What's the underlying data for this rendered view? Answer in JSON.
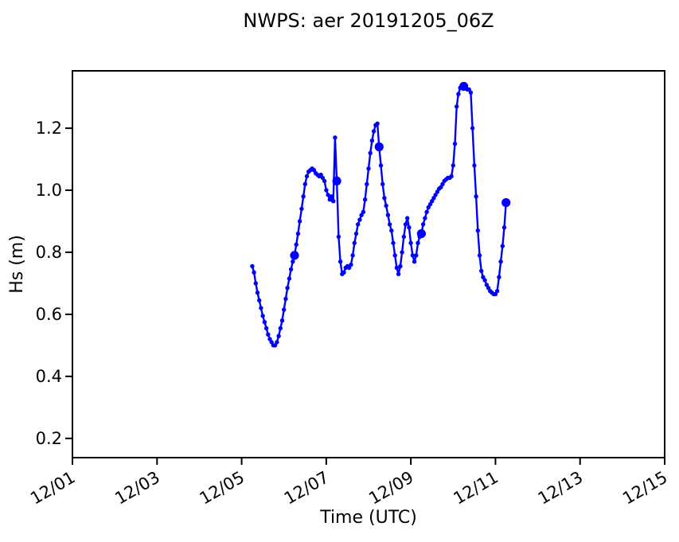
{
  "figure": {
    "title": "NWPS: aer 20191205_06Z",
    "xlabel": "Time (UTC)",
    "ylabel": "Hs (m)"
  },
  "chart_data": {
    "type": "line",
    "title": "NWPS: aer 20191205_06Z",
    "xlabel": "Time (UTC)",
    "ylabel": "Hs (m)",
    "grid": false,
    "legend": "none",
    "line_color": "#0000ff",
    "background_color": "#ffffff",
    "x_axis": {
      "tick_labels": [
        "12/01",
        "12/03",
        "12/05",
        "12/07",
        "12/09",
        "12/11",
        "12/13",
        "12/15"
      ],
      "tick_days": [
        0,
        2,
        4,
        6,
        8,
        10,
        12,
        14
      ],
      "range_days": [
        0,
        14
      ],
      "tick_rotation_deg": 30
    },
    "y_axis": {
      "tick_labels": [
        "0.2",
        "0.4",
        "0.6",
        "0.8",
        "1.0",
        "1.2"
      ],
      "ticks": [
        0.2,
        0.4,
        0.6,
        0.8,
        1.0,
        1.2
      ],
      "range": [
        0.138,
        1.385
      ]
    },
    "series": [
      {
        "name": "Hs",
        "start_label": "12/05 06Z",
        "start_day_offset": 4.25,
        "interval_hours": 1,
        "values": [
          0.755,
          0.735,
          0.7,
          0.67,
          0.645,
          0.62,
          0.595,
          0.575,
          0.555,
          0.535,
          0.52,
          0.51,
          0.5,
          0.5,
          0.51,
          0.53,
          0.555,
          0.58,
          0.615,
          0.65,
          0.685,
          0.715,
          0.745,
          0.77,
          0.79,
          0.825,
          0.86,
          0.9,
          0.94,
          0.98,
          1.02,
          1.045,
          1.06,
          1.065,
          1.07,
          1.065,
          1.055,
          1.05,
          1.045,
          1.05,
          1.04,
          1.03,
          1.0,
          0.985,
          0.97,
          0.98,
          0.965,
          1.17,
          1.03,
          0.85,
          0.77,
          0.73,
          0.735,
          0.75,
          0.755,
          0.75,
          0.76,
          0.79,
          0.83,
          0.86,
          0.89,
          0.905,
          0.92,
          0.93,
          0.97,
          1.02,
          1.07,
          1.12,
          1.16,
          1.19,
          1.21,
          1.215,
          1.14,
          1.08,
          1.02,
          0.975,
          0.95,
          0.92,
          0.89,
          0.87,
          0.83,
          0.79,
          0.75,
          0.73,
          0.755,
          0.8,
          0.85,
          0.89,
          0.91,
          0.88,
          0.83,
          0.79,
          0.77,
          0.79,
          0.83,
          0.85,
          0.86,
          0.89,
          0.91,
          0.93,
          0.945,
          0.955,
          0.965,
          0.975,
          0.985,
          0.995,
          1.005,
          1.01,
          1.02,
          1.03,
          1.035,
          1.04,
          1.04,
          1.045,
          1.08,
          1.15,
          1.27,
          1.31,
          1.33,
          1.33,
          1.335,
          1.33,
          1.325,
          1.325,
          1.315,
          1.2,
          1.08,
          0.98,
          0.87,
          0.79,
          0.74,
          0.72,
          0.71,
          0.695,
          0.685,
          0.675,
          0.67,
          0.665,
          0.665,
          0.675,
          0.72,
          0.77,
          0.82,
          0.88,
          0.96
        ],
        "daily_marker_hours": [
          24,
          48,
          72,
          96,
          120,
          144
        ],
        "daily_marker_values": [
          0.79,
          1.03,
          1.14,
          0.86,
          1.335,
          0.96
        ]
      }
    ]
  }
}
